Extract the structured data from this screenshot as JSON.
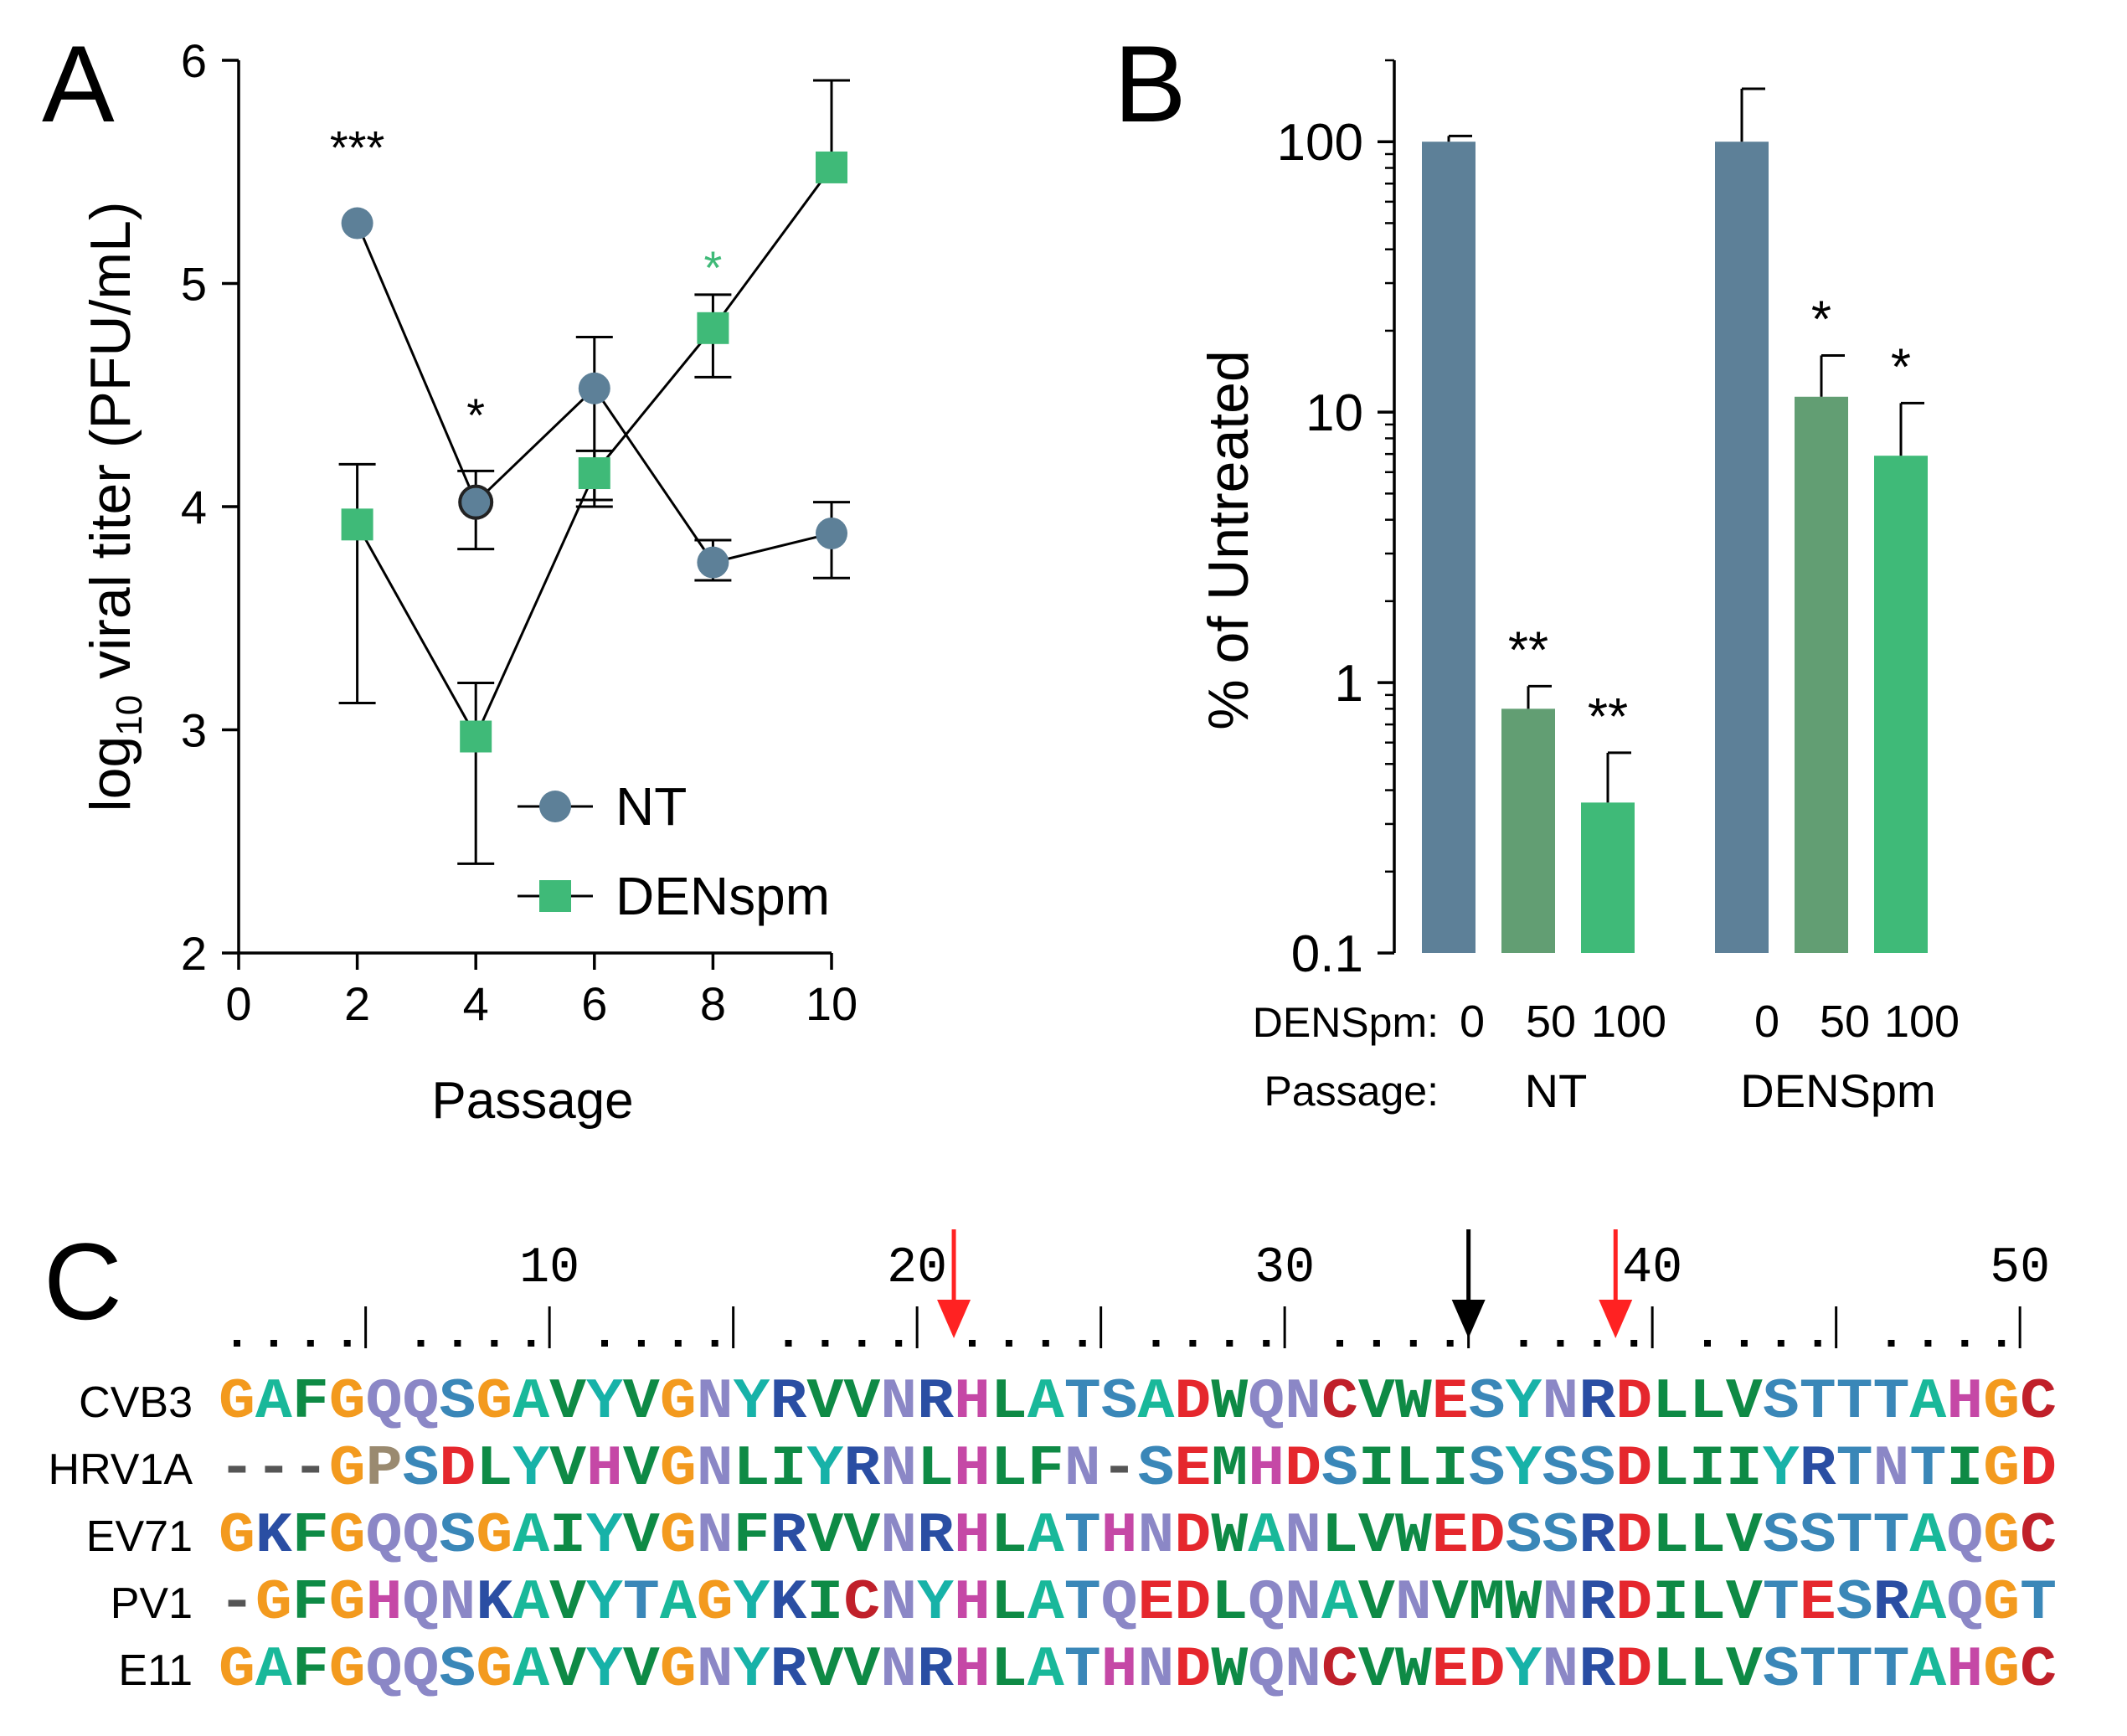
{
  "colors": {
    "nt": "#5d8098",
    "densp": "#3fba78",
    "densp50": "#629e73",
    "axis": "#000000",
    "green_star": "#3fba78",
    "red_arrow": "#ff2222",
    "black_arrow": "#000000"
  },
  "chart_data": [
    {
      "panel": "A",
      "type": "line",
      "panel_label": "A",
      "xlabel": "Passage",
      "ylabel_main": "log",
      "ylabel_sub": "10",
      "ylabel_rest": " viral titer (PFU/mL)",
      "xlim": [
        0,
        10
      ],
      "ylim": [
        2,
        6
      ],
      "xticks": [
        0,
        2,
        4,
        6,
        8,
        10
      ],
      "yticks": [
        2,
        3,
        4,
        5,
        6
      ],
      "legend_position": "bottom-right",
      "series": [
        {
          "name": "NT",
          "marker": "circle",
          "color": "#5d8098",
          "x": [
            2,
            4,
            6,
            8,
            10
          ],
          "y": [
            5.27,
            4.02,
            4.53,
            3.75,
            3.88
          ],
          "err_up": [
            0,
            0.14,
            0.23,
            0.1,
            0.14
          ],
          "err_down": [
            0,
            0.21,
            0.5,
            0.08,
            0.2
          ]
        },
        {
          "name": "DENspm",
          "marker": "square",
          "color": "#3fba78",
          "x": [
            2,
            4,
            6,
            8,
            10
          ],
          "y": [
            3.92,
            2.97,
            4.15,
            4.8,
            5.52
          ],
          "err_up": [
            0.27,
            0.24,
            0.1,
            0.15,
            0.39
          ],
          "err_down": [
            0.8,
            0.57,
            0.15,
            0.22,
            0
          ]
        }
      ],
      "annotations": [
        {
          "x": 2,
          "y": 5.62,
          "text": "***",
          "color": "#000000"
        },
        {
          "x": 4,
          "y": 4.42,
          "text": "*",
          "color": "#000000"
        },
        {
          "x": 8,
          "y": 5.08,
          "text": "*",
          "color": "#3fba78"
        }
      ]
    },
    {
      "panel": "B",
      "type": "bar",
      "panel_label": "B",
      "ylabel": "% of Untreated",
      "yscale": "log",
      "ylim": [
        0.1,
        200
      ],
      "yticks": [
        0.1,
        1,
        10,
        100
      ],
      "ytick_labels": [
        "0.1",
        "1",
        "10",
        "100"
      ],
      "row_label_dose": "DENSpm:",
      "row_label_passage": "Passage:",
      "groups": [
        "NT",
        "DENSpm"
      ],
      "categories": [
        "0",
        "50",
        "100",
        "0",
        "50",
        "100"
      ],
      "group_of_bar": [
        0,
        0,
        0,
        1,
        1,
        1
      ],
      "values": [
        100,
        0.8,
        0.36,
        100,
        11.4,
        6.9
      ],
      "errors_up": [
        105,
        0.97,
        0.55,
        157,
        16.2,
        10.8
      ],
      "bar_colors": [
        "#5d8098",
        "#629e73",
        "#3fba78",
        "#5d8098",
        "#629e73",
        "#3fba78"
      ],
      "significance": [
        "",
        "**",
        "**",
        "",
        "*",
        "*"
      ]
    }
  ],
  "alignment": {
    "panel_label": "C",
    "ruler_numbers": [
      "10",
      "20",
      "30",
      "40",
      "50"
    ],
    "red_arrow_positions": [
      21,
      39
    ],
    "black_arrow_position": 35,
    "sequences": [
      {
        "name": "CVB3",
        "seq": "GAFGQQSGAVYVGNYRVVNRHLATSADWQNCVWESYNRDLLVSTTTAHGC"
      },
      {
        "name": "HRV1A",
        "seq": "---GPSDLYVHVGNLIYRNLHLFN-SEMHDSILISYSSDLIIYRTNTIGD"
      },
      {
        "name": "EV71",
        "seq": "GKFGQQSGAIYVGNFRVVNRHLATHNDWANLVWEDSSRDLLVSSTTAQGC"
      },
      {
        "name": "PV1",
        "seq": "-GFGHQNKAVYTAGYKICNYHLATQEDLQNAVNVMWNRDILVTESRAQGT"
      },
      {
        "name": "E11",
        "seq": "GAFGQQSGAVYVGNYRVVNRHLATHNDWQNCVWEDYNRDLLVSTTTAHGC"
      }
    ],
    "residue_colors": {
      "G": "#f39a1e",
      "P": "#9a8a70",
      "A": "#19b89a",
      "V": "#0e8a45",
      "L": "#0e8a45",
      "I": "#0e8a45",
      "M": "#0e8a45",
      "F": "#0e8a45",
      "W": "#0e8a45",
      "C": "#c0202a",
      "D": "#e5272d",
      "E": "#e5272d",
      "K": "#2a4ea3",
      "R": "#2a4ea3",
      "H": "#c548a6",
      "S": "#3a87b8",
      "T": "#3a87b8",
      "N": "#8b87c6",
      "Q": "#8b87c6",
      "Y": "#17b2a8",
      "-": "#555555"
    }
  }
}
